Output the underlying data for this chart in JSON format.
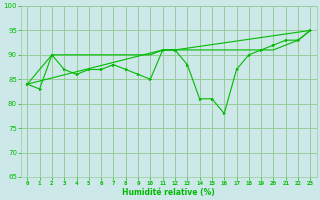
{
  "xlabel": "Humidité relative (%)",
  "bg_color": "#cce8e8",
  "grid_color": "#99cc99",
  "line_color": "#00bb00",
  "xmin": -0.5,
  "xmax": 23.5,
  "ymin": 65,
  "ymax": 100,
  "yticks": [
    65,
    70,
    75,
    80,
    85,
    90,
    95,
    100
  ],
  "xticks": [
    0,
    1,
    2,
    3,
    4,
    5,
    6,
    7,
    8,
    9,
    10,
    11,
    12,
    13,
    14,
    15,
    16,
    17,
    18,
    19,
    20,
    21,
    22,
    23
  ],
  "series": [
    {
      "x": [
        0,
        1,
        2,
        3,
        4,
        5,
        6,
        7,
        8,
        9,
        10,
        11,
        12,
        13,
        14,
        15,
        16,
        17,
        18,
        19,
        20,
        21,
        22,
        23
      ],
      "y": [
        84,
        83,
        90,
        87,
        86,
        87,
        87,
        88,
        87,
        86,
        85,
        91,
        91,
        88,
        81,
        81,
        78,
        87,
        90,
        91,
        92,
        93,
        93,
        95
      ]
    },
    {
      "x": [
        0,
        2,
        3,
        4,
        5,
        6,
        7,
        8,
        9,
        10,
        11,
        12,
        13,
        14,
        15,
        16,
        17,
        18,
        19,
        20,
        21,
        22,
        23
      ],
      "y": [
        84,
        90,
        90,
        90,
        90,
        90,
        90,
        90,
        90,
        90,
        91,
        91,
        91,
        91,
        91,
        91,
        91,
        91,
        91,
        91,
        92,
        93,
        95
      ]
    },
    {
      "x": [
        0,
        11,
        12,
        23
      ],
      "y": [
        84,
        91,
        91,
        95
      ]
    }
  ]
}
